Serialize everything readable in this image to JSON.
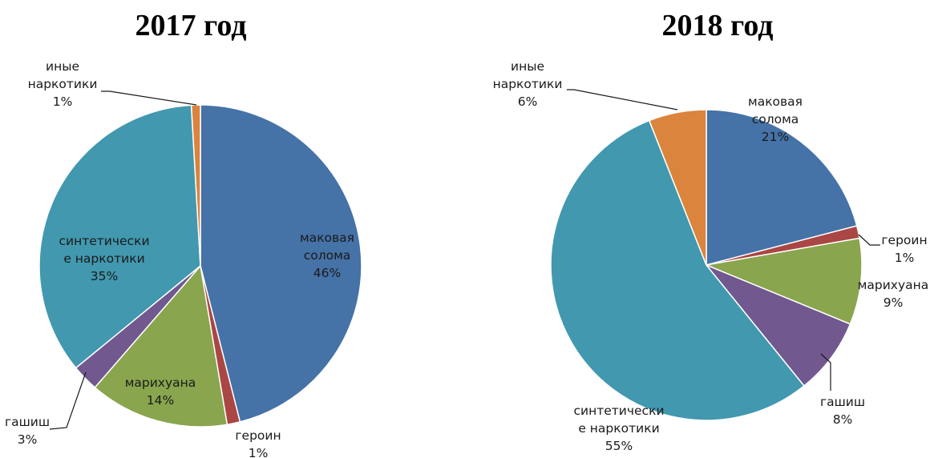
{
  "colors": {
    "blue": "#4572A7",
    "red": "#AA4643",
    "green": "#89A54E",
    "purple": "#71588F",
    "teal": "#4198AF",
    "orange": "#DB843D"
  },
  "chart_data": [
    {
      "type": "pie",
      "title": "2017 год",
      "start": "top",
      "direction": "clockwise",
      "slices": [
        {
          "name": "маковая солома",
          "lines": [
            "маковая",
            "солома"
          ],
          "value": 46,
          "label": "46%",
          "color": "#4572A7"
        },
        {
          "name": "героин",
          "lines": [
            "героин"
          ],
          "value": 1.3,
          "label": "1%",
          "color": "#AA4643"
        },
        {
          "name": "марихуана",
          "lines": [
            "марихуана"
          ],
          "value": 14,
          "label": "14%",
          "color": "#89A54E"
        },
        {
          "name": "гашиш",
          "lines": [
            "гашиш"
          ],
          "value": 2.7,
          "label": "3%",
          "color": "#71588F"
        },
        {
          "name": "синтетические наркотики",
          "lines": [
            "синтетически",
            "е наркотики"
          ],
          "value": 35,
          "label": "35%",
          "color": "#4198AF"
        },
        {
          "name": "иные наркотики",
          "lines": [
            "иные",
            "наркотики"
          ],
          "value": 0.9,
          "label": "1%",
          "color": "#DB843D"
        }
      ]
    },
    {
      "type": "pie",
      "title": "2018 год",
      "start": "top",
      "direction": "clockwise",
      "slices": [
        {
          "name": "маковая солома",
          "lines": [
            "маковая",
            "солома"
          ],
          "value": 21,
          "label": "21%",
          "color": "#4572A7"
        },
        {
          "name": "героин",
          "lines": [
            "героин"
          ],
          "value": 1.3,
          "label": "1%",
          "color": "#AA4643"
        },
        {
          "name": "марихуана",
          "lines": [
            "марихуана"
          ],
          "value": 9,
          "label": "9%",
          "color": "#89A54E"
        },
        {
          "name": "гашиш",
          "lines": [
            "гашиш"
          ],
          "value": 8,
          "label": "8%",
          "color": "#71588F"
        },
        {
          "name": "синтетические наркотики",
          "lines": [
            "синтетически",
            "е наркотики"
          ],
          "value": 55,
          "label": "55%",
          "color": "#4198AF"
        },
        {
          "name": "иные наркотики",
          "lines": [
            "иные",
            "наркотики"
          ],
          "value": 6,
          "label": "6%",
          "color": "#DB843D"
        }
      ]
    }
  ]
}
